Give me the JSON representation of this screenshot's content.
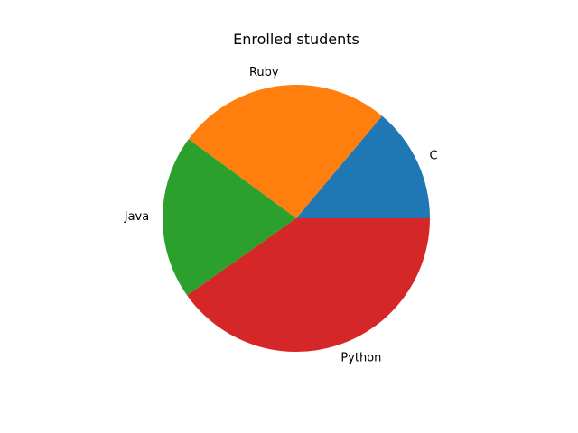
{
  "chart_data": {
    "type": "pie",
    "title": "Enrolled students",
    "categories": [
      "C",
      "Ruby",
      "Java",
      "Python"
    ],
    "values": [
      13.9,
      26.0,
      19.9,
      40.2
    ],
    "colors": [
      "#1f77b4",
      "#ff7f0e",
      "#2ca02c",
      "#d62728"
    ],
    "start_angle_deg": 0,
    "direction": "counterclockwise",
    "legend": "none"
  }
}
